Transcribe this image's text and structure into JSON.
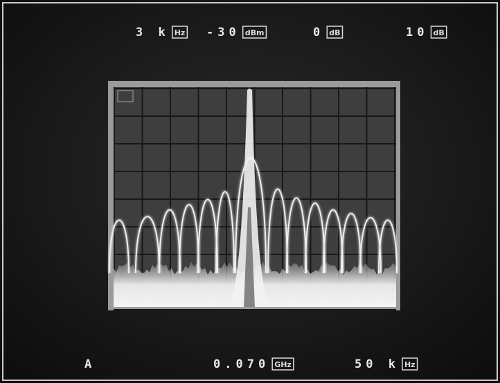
{
  "top_readouts": [
    {
      "value": "3 k",
      "unit": "Hz"
    },
    {
      "value": "-30",
      "unit": "dBm"
    },
    {
      "value": "0",
      "unit": "dB"
    },
    {
      "value": "10",
      "unit": "dB"
    }
  ],
  "bottom_readouts": [
    {
      "value": "A"
    },
    {
      "value": "0.070",
      "unit": "GHz"
    },
    {
      "value": "50 k",
      "unit": "Hz"
    }
  ]
}
